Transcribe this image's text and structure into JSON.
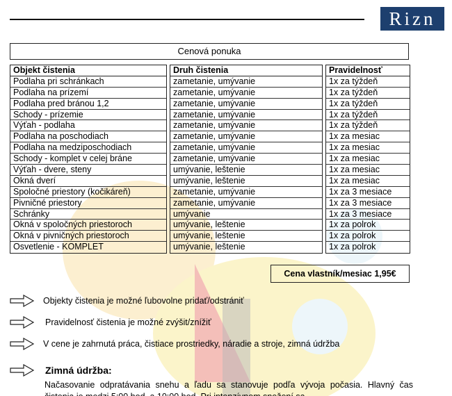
{
  "logo": {
    "text": "Rizn"
  },
  "table": {
    "title": "Cenová ponuka",
    "headers": [
      "Objekt čistenia",
      "Druh čistenia",
      "Pravidelnosť"
    ],
    "objects": [
      "Podlaha pri schránkach",
      "Podlaha na prízemí",
      "Podlaha pred bránou 1,2",
      "Schody - prízemie",
      "Výťah - podlaha",
      "Podlaha na poschodiach",
      "Podlaha na medziposchodiach",
      "Schody - komplet v celej bráne",
      "Výťah - dvere, steny",
      "Okná dverí",
      "Spoločné priestory (kočikáreň)",
      "Pivničné priestory",
      "Schránky",
      "Okná v spoločných priestoroch",
      "Okná v pivničných priestoroch",
      "Osvetlenie - KOMPLET"
    ],
    "types": [
      "zametanie, umývanie",
      "zametanie, umývanie",
      "zametanie, umývanie",
      "zametanie, umývanie",
      "zametanie, umývanie",
      "zametanie, umývanie",
      "zametanie, umývanie",
      "zametanie, umývanie",
      "umývanie, leštenie",
      "umývanie, leštenie",
      "zametanie, umývanie",
      "zametanie, umývanie",
      "umývanie",
      "umývanie, leštenie",
      "umývanie, leštenie",
      "umývanie, leštenie"
    ],
    "frequency": [
      "1x za týždeň",
      "1x za týždeň",
      "1x za týždeň",
      "1x za týždeň",
      "1x za týždeň",
      "1x za mesiac",
      "1x za mesiac",
      "1x za mesiac",
      "1x za mesiac",
      "1x za mesiac",
      "1x za 3 mesiace",
      "1x za 3 mesiace",
      "1x za 3 mesiace",
      "1x za polrok",
      "1x za polrok",
      "1x za polrok"
    ]
  },
  "price": "Cena vlastník/mesiac 1,95€",
  "notes": [
    "Objekty čistenia je možné ľubovolne pridať/odstrániť",
    "Pravidelnosť čistenia je možné zvýšit/znížiť",
    "V cene je zahrnutá práca, čistiace prostriedky, náradie a stroje, zimná údržba"
  ],
  "winter": {
    "heading": "Zimná údržba:",
    "text": "Načasovanie  odpratávania snehu a ľadu sa stanovuje podľa vývoja počasia. Hlavný čas čistenia je medzi 5:00 hod. a 10:00 hod. Pri intenzívnom snežení sa"
  }
}
